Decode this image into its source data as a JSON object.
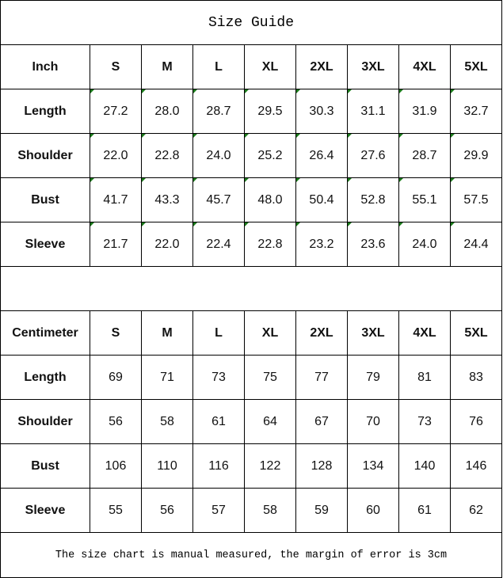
{
  "title": "Size Guide",
  "footer_note": "The size chart is manual measured, the margin of error is 3cm",
  "marker_color": "#1a7a1a",
  "tables": [
    {
      "unit": "Inch",
      "sizes": [
        "S",
        "M",
        "L",
        "XL",
        "2XL",
        "3XL",
        "4XL",
        "5XL"
      ],
      "rows": [
        {
          "label": "Length",
          "values": [
            "27.2",
            "28.0",
            "28.7",
            "29.5",
            "30.3",
            "31.1",
            "31.9",
            "32.7"
          ]
        },
        {
          "label": "Shoulder",
          "values": [
            "22.0",
            "22.8",
            "24.0",
            "25.2",
            "26.4",
            "27.6",
            "28.7",
            "29.9"
          ]
        },
        {
          "label": "Bust",
          "values": [
            "41.7",
            "43.3",
            "45.7",
            "48.0",
            "50.4",
            "52.8",
            "55.1",
            "57.5"
          ]
        },
        {
          "label": "Sleeve",
          "values": [
            "21.7",
            "22.0",
            "22.4",
            "22.8",
            "23.2",
            "23.6",
            "24.0",
            "24.4"
          ]
        }
      ]
    },
    {
      "unit": "Centimeter",
      "sizes": [
        "S",
        "M",
        "L",
        "XL",
        "2XL",
        "3XL",
        "4XL",
        "5XL"
      ],
      "rows": [
        {
          "label": "Length",
          "values": [
            "69",
            "71",
            "73",
            "75",
            "77",
            "79",
            "81",
            "83"
          ]
        },
        {
          "label": "Shoulder",
          "values": [
            "56",
            "58",
            "61",
            "64",
            "67",
            "70",
            "73",
            "76"
          ]
        },
        {
          "label": "Bust",
          "values": [
            "106",
            "110",
            "116",
            "122",
            "128",
            "134",
            "140",
            "146"
          ]
        },
        {
          "label": "Sleeve",
          "values": [
            "55",
            "56",
            "57",
            "58",
            "59",
            "60",
            "61",
            "62"
          ]
        }
      ]
    }
  ]
}
